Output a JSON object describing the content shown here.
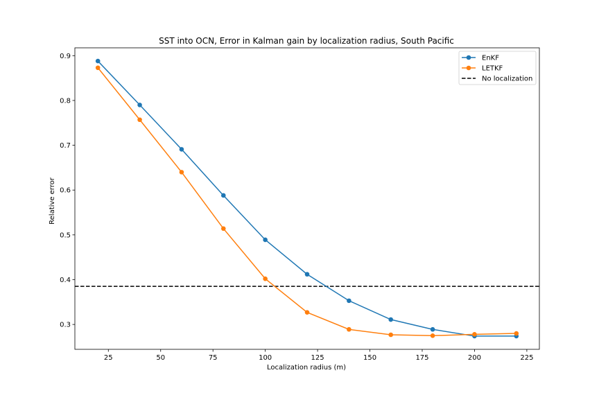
{
  "chart_data": {
    "type": "line",
    "title": "SST into OCN, Error in Kalman gain by localization radius, South Pacific",
    "xlabel": "Localization radius (m)",
    "ylabel": "Relative error",
    "xlim": [
      9,
      231
    ],
    "ylim": [
      0.2445,
      0.9175
    ],
    "x_ticks": [
      25,
      50,
      75,
      100,
      125,
      150,
      175,
      200,
      225
    ],
    "y_ticks": [
      0.3,
      0.4,
      0.5,
      0.6,
      0.7,
      0.8,
      0.9
    ],
    "x_tick_labels": [
      "25",
      "50",
      "75",
      "100",
      "125",
      "150",
      "175",
      "200",
      "225"
    ],
    "y_tick_labels": [
      "0.3",
      "0.4",
      "0.5",
      "0.6",
      "0.7",
      "0.8",
      "0.9"
    ],
    "x": [
      20,
      40,
      60,
      80,
      100,
      120,
      140,
      160,
      180,
      200,
      220
    ],
    "series": [
      {
        "name": "EnKF",
        "color": "#1f77b4",
        "values": [
          0.888,
          0.79,
          0.691,
          0.588,
          0.489,
          0.412,
          0.353,
          0.311,
          0.289,
          0.274,
          0.274
        ]
      },
      {
        "name": "LETKF",
        "color": "#ff7f0e",
        "values": [
          0.873,
          0.757,
          0.64,
          0.514,
          0.402,
          0.327,
          0.289,
          0.277,
          0.275,
          0.278,
          0.28
        ]
      }
    ],
    "reference_line": {
      "name": "No localization",
      "y": 0.385,
      "color": "#000000",
      "style": "dashed"
    },
    "legend_position": "top-right",
    "grid": false
  }
}
